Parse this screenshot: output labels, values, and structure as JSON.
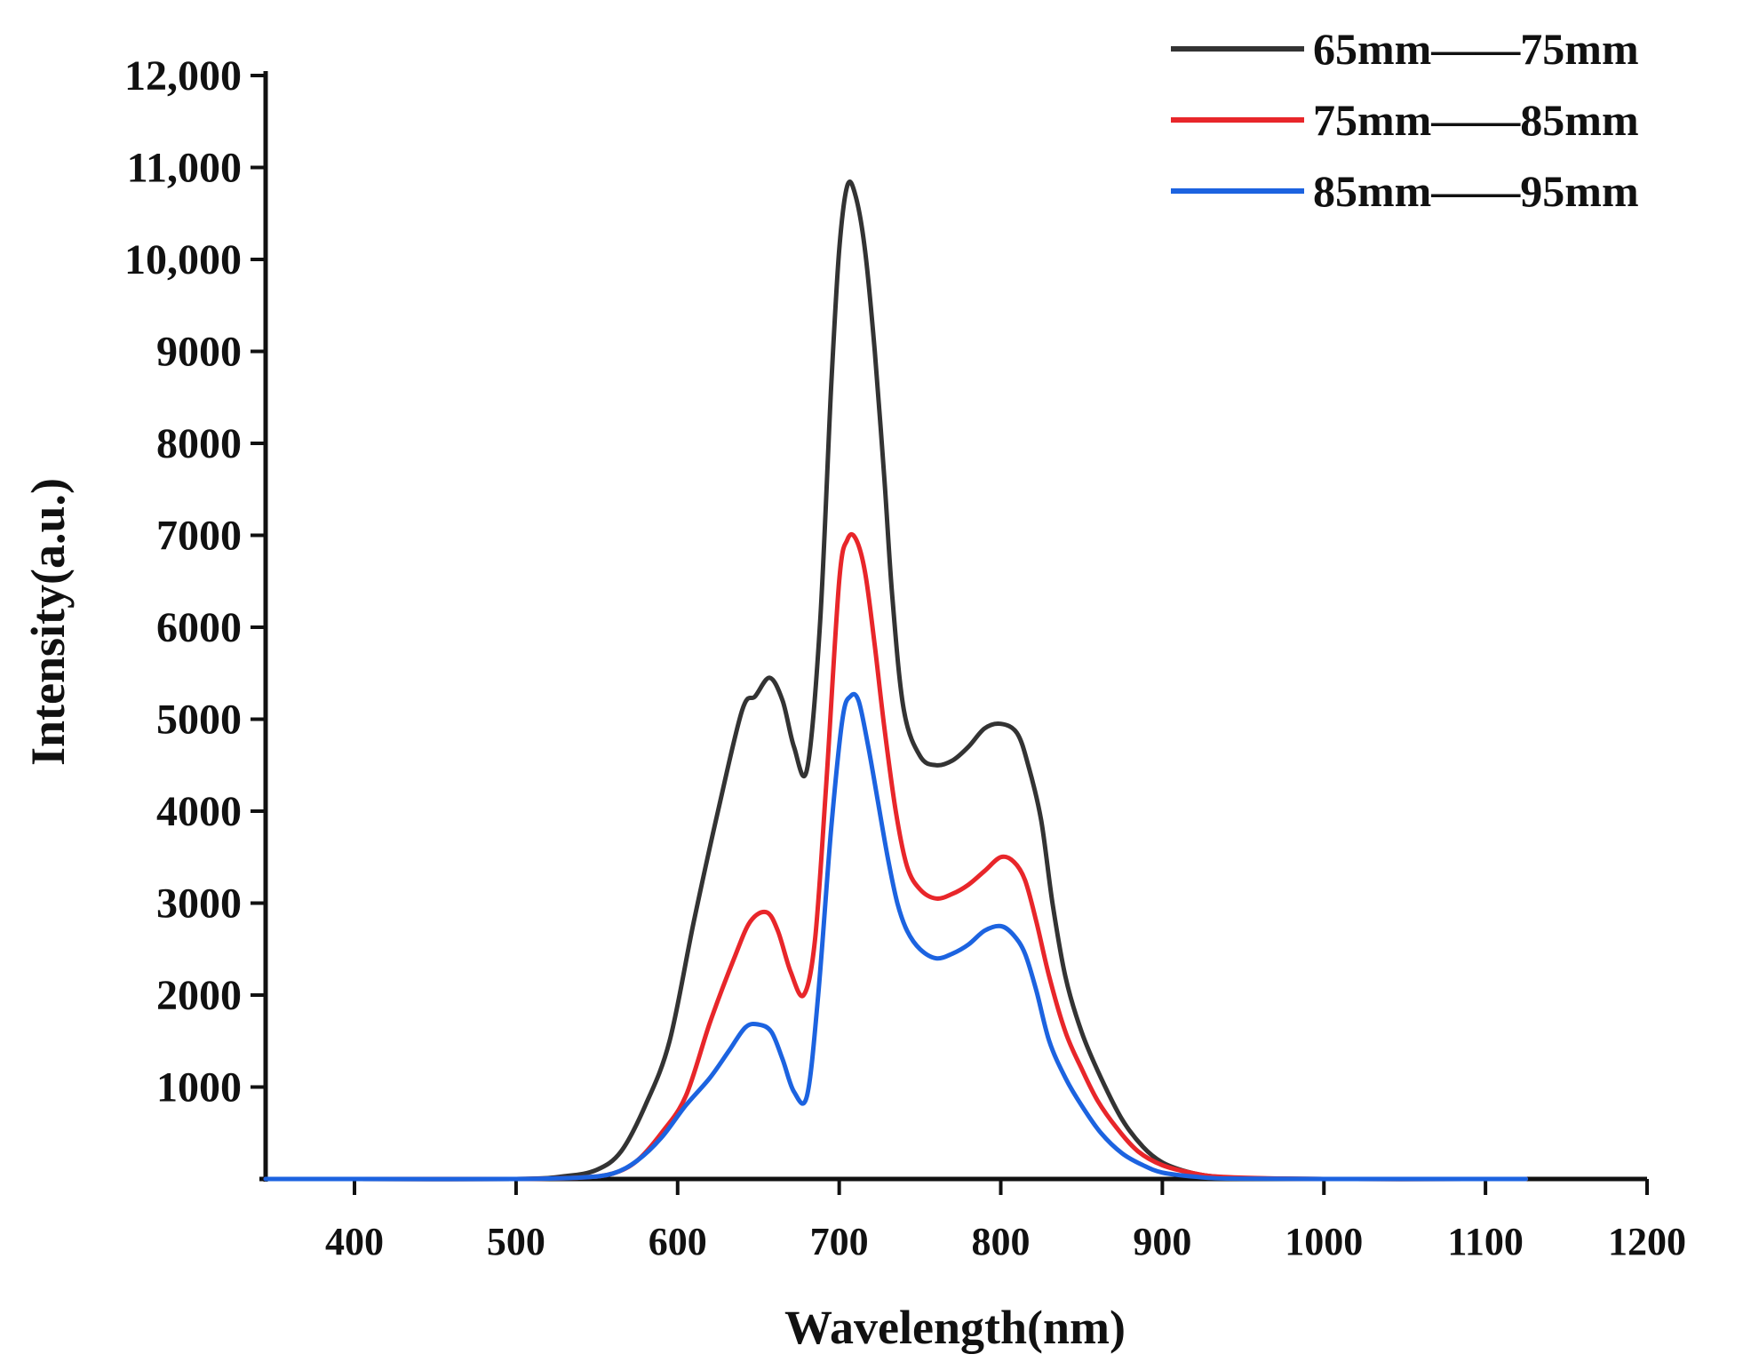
{
  "chart_data": {
    "type": "line",
    "title": "",
    "xlabel": "Wavelength(nm)",
    "ylabel": "Intensity(a.u.)",
    "xlim": [
      345,
      1200
    ],
    "ylim": [
      0,
      12000
    ],
    "x_ticks": [
      400,
      500,
      600,
      700,
      800,
      900,
      1000,
      1100,
      1200
    ],
    "x_tick_labels": [
      "400",
      "500",
      "600",
      "700",
      "800",
      "900",
      "1000",
      "1100",
      "1200"
    ],
    "y_ticks": [
      1000,
      2000,
      3000,
      4000,
      5000,
      6000,
      7000,
      8000,
      9000,
      10000,
      11000,
      12000
    ],
    "y_tick_labels": [
      "1000",
      "2000",
      "3000",
      "4000",
      "5000",
      "6000",
      "7000",
      "8000",
      "9000",
      "10,000",
      "11,000",
      "12,000"
    ],
    "grid": false,
    "legend_position": "top-right",
    "series": [
      {
        "name": "65mm——75mm",
        "color": "#333333",
        "x": [
          345,
          400,
          500,
          530,
          550,
          565,
          580,
          595,
          610,
          625,
          640,
          648,
          657,
          665,
          672,
          680,
          688,
          695,
          700,
          705,
          710,
          716,
          722,
          728,
          733,
          740,
          750,
          760,
          770,
          780,
          790,
          800,
          810,
          817,
          825,
          832,
          840,
          850,
          862,
          875,
          888,
          900,
          915,
          930,
          950,
          1000,
          1100,
          1125
        ],
        "y": [
          0,
          0,
          0,
          30,
          100,
          300,
          800,
          1500,
          2800,
          4000,
          5100,
          5250,
          5450,
          5200,
          4700,
          4450,
          6000,
          8600,
          10100,
          10800,
          10700,
          10100,
          9000,
          7600,
          6300,
          5100,
          4600,
          4500,
          4550,
          4700,
          4900,
          4950,
          4850,
          4500,
          3900,
          3000,
          2200,
          1600,
          1100,
          650,
          350,
          180,
          80,
          30,
          10,
          0,
          0,
          0
        ]
      },
      {
        "name": "75mm——85mm",
        "color": "#e8262a",
        "x": [
          345,
          400,
          500,
          540,
          560,
          575,
          590,
          605,
          620,
          635,
          645,
          655,
          662,
          670,
          678,
          685,
          692,
          700,
          705,
          710,
          716,
          722,
          728,
          735,
          742,
          750,
          760,
          770,
          780,
          790,
          800,
          808,
          815,
          822,
          830,
          840,
          850,
          860,
          872,
          885,
          900,
          920,
          940,
          1000,
          1100,
          1125
        ],
        "y": [
          0,
          0,
          0,
          15,
          60,
          200,
          500,
          900,
          1700,
          2400,
          2800,
          2900,
          2700,
          2250,
          2000,
          2600,
          4300,
          6500,
          6950,
          6970,
          6600,
          5800,
          4900,
          4000,
          3400,
          3150,
          3050,
          3100,
          3200,
          3350,
          3500,
          3450,
          3250,
          2800,
          2200,
          1600,
          1200,
          850,
          550,
          300,
          150,
          60,
          20,
          0,
          0,
          0
        ]
      },
      {
        "name": "85mm——95mm",
        "color": "#1c63e0",
        "x": [
          345,
          400,
          500,
          540,
          560,
          575,
          590,
          605,
          620,
          632,
          642,
          650,
          658,
          665,
          672,
          680,
          687,
          695,
          702,
          707,
          712,
          718,
          724,
          730,
          736,
          742,
          750,
          760,
          770,
          780,
          790,
          800,
          808,
          815,
          822,
          830,
          840,
          850,
          862,
          875,
          888,
          900,
          920,
          940,
          1000,
          1100,
          1125
        ],
        "y": [
          0,
          0,
          0,
          15,
          60,
          200,
          450,
          800,
          1100,
          1400,
          1650,
          1680,
          1600,
          1300,
          950,
          900,
          2000,
          3800,
          5000,
          5250,
          5200,
          4700,
          4100,
          3500,
          3000,
          2700,
          2500,
          2400,
          2450,
          2550,
          2700,
          2750,
          2650,
          2450,
          2050,
          1500,
          1100,
          800,
          500,
          280,
          150,
          70,
          25,
          5,
          0,
          0,
          0
        ]
      }
    ]
  }
}
